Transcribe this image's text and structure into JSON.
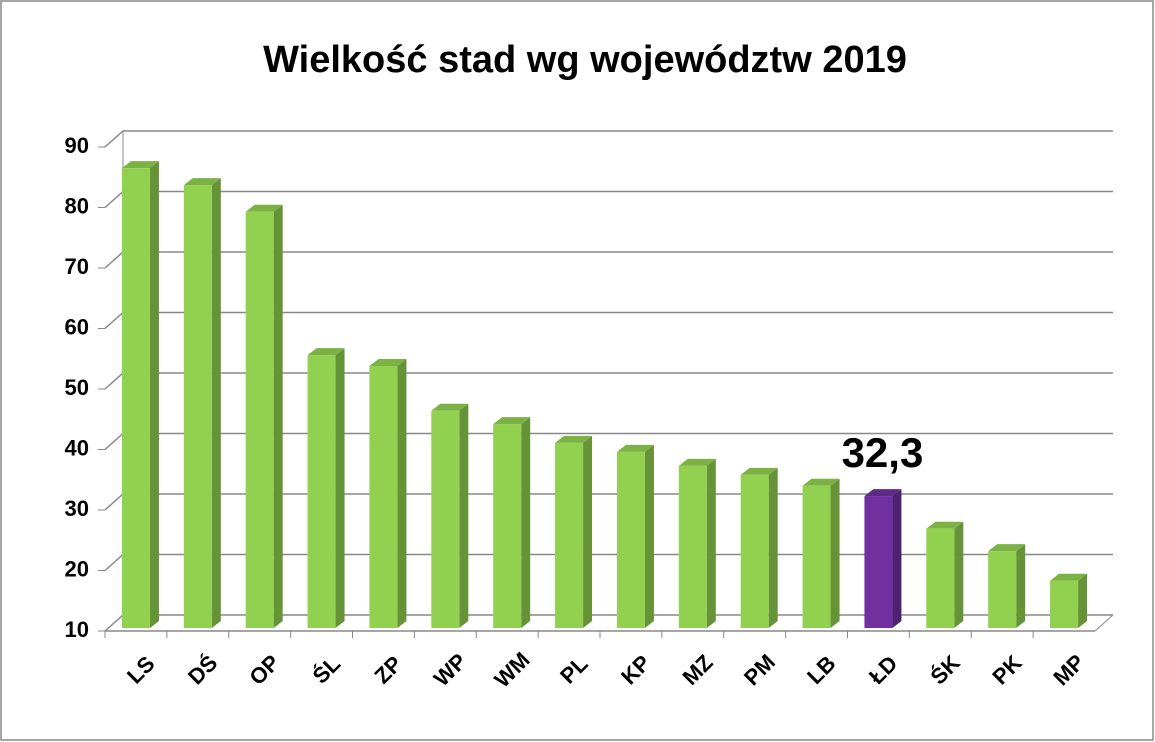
{
  "chart_data": {
    "type": "bar3d",
    "title": "Wielkość stad wg województw 2019",
    "categories": [
      "LS",
      "DŚ",
      "OP",
      "ŚL",
      "ZP",
      "WP",
      "WM",
      "PL",
      "KP",
      "MZ",
      "PM",
      "LB",
      "ŁD",
      "ŚK",
      "PK",
      "MP"
    ],
    "values": [
      86.5,
      83.7,
      79.3,
      55.6,
      53.8,
      46.4,
      44.2,
      41.1,
      39.6,
      37.3,
      35.8,
      34.0,
      32.3,
      26.9,
      23.2,
      18.3
    ],
    "value_labels": [
      null,
      null,
      null,
      null,
      null,
      null,
      null,
      null,
      null,
      null,
      null,
      null,
      "32,3",
      null,
      null,
      null
    ],
    "colors": [
      "#92d050",
      "#92d050",
      "#92d050",
      "#92d050",
      "#92d050",
      "#92d050",
      "#92d050",
      "#92d050",
      "#92d050",
      "#92d050",
      "#92d050",
      "#92d050",
      "#7030a0",
      "#92d050",
      "#92d050",
      "#92d050"
    ],
    "ylim": [
      10,
      90
    ],
    "yticks": [
      10,
      20,
      30,
      40,
      50,
      60,
      70,
      80,
      90
    ],
    "grid": true
  }
}
